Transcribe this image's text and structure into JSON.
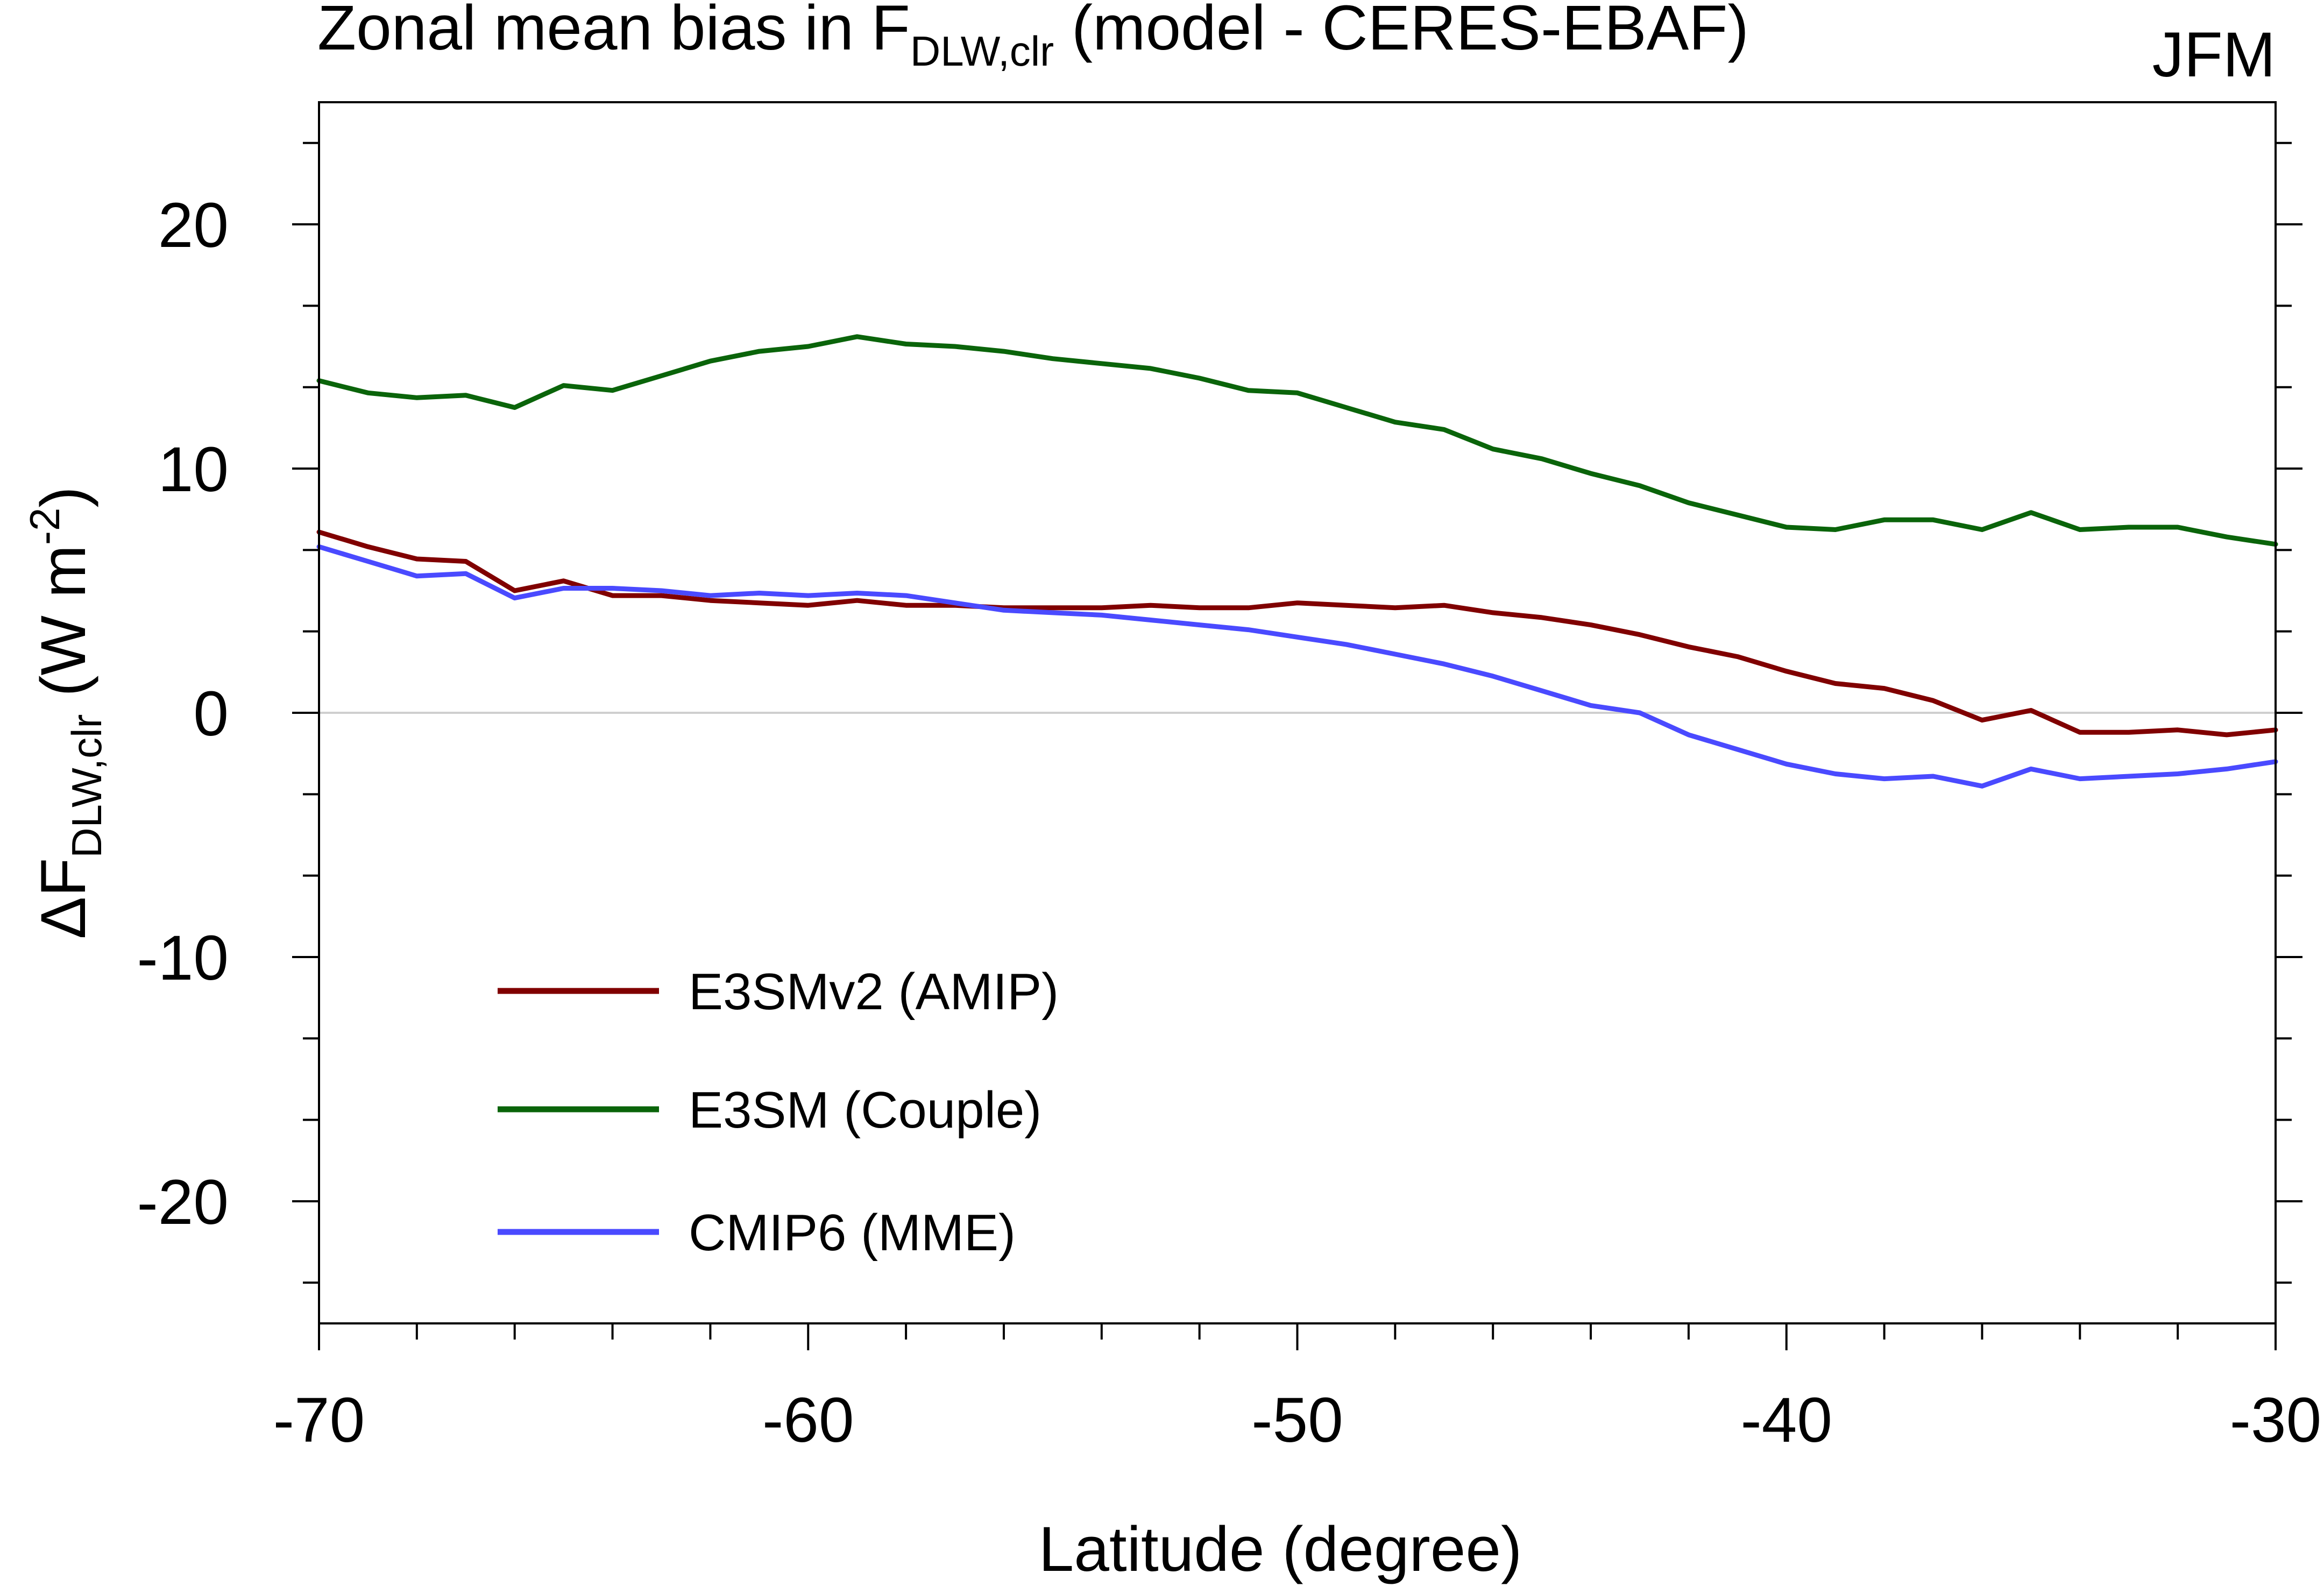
{
  "chart_data": {
    "type": "line",
    "title": {
      "prefix": "Zonal mean bias in F",
      "subscript": "DLW,clr",
      "suffix": " (model - CERES-EBAF)"
    },
    "season": "JFM",
    "xlabel": "Latitude (degree)",
    "ylabel": {
      "prefix": "ΔF",
      "subscript": "DLW,clr",
      "unit_open": " (W m",
      "superscript": "-2",
      "unit_close": ")"
    },
    "xlim": [
      -70,
      -30
    ],
    "ylim": [
      -25,
      25
    ],
    "xticks": [
      -70,
      -60,
      -50,
      -40,
      -30
    ],
    "yticks": [
      -20,
      -10,
      0,
      10,
      20
    ],
    "xtick_labels": [
      "-70",
      "-60",
      "-50",
      "-40",
      "-30"
    ],
    "ytick_labels": [
      "-20",
      "-10",
      "0",
      "10",
      "20"
    ],
    "x_minor_step": 2,
    "y_minor_step": 3.333,
    "zero_line": true,
    "legend_position": "lower-left",
    "x": [
      -70,
      -69,
      -68,
      -67,
      -66,
      -65,
      -64,
      -63,
      -62,
      -61,
      -60,
      -59,
      -58,
      -57,
      -56,
      -55,
      -54,
      -53,
      -52,
      -51,
      -50,
      -49,
      -48,
      -47,
      -46,
      -45,
      -44,
      -43,
      -42,
      -41,
      -40,
      -39,
      -38,
      -37,
      -36,
      -35,
      -34,
      -33,
      -32,
      -31,
      -30
    ],
    "series": [
      {
        "name": "E3SMv2 (AMIP)",
        "color": "#800000",
        "values": [
          7.4,
          6.8,
          6.3,
          6.2,
          5.0,
          5.4,
          4.8,
          4.8,
          4.6,
          4.5,
          4.4,
          4.6,
          4.4,
          4.4,
          4.3,
          4.3,
          4.3,
          4.4,
          4.3,
          4.3,
          4.5,
          4.4,
          4.3,
          4.4,
          4.1,
          3.9,
          3.6,
          3.2,
          2.7,
          2.3,
          1.7,
          1.2,
          1.0,
          0.5,
          -0.3,
          0.1,
          -0.8,
          -0.8,
          -0.7,
          -0.9,
          -0.7
        ]
      },
      {
        "name": "E3SM (Couple)",
        "color": "#0a640a",
        "values": [
          13.6,
          13.1,
          12.9,
          13.0,
          12.5,
          13.4,
          13.2,
          13.8,
          14.4,
          14.8,
          15.0,
          15.4,
          15.1,
          15.0,
          14.8,
          14.5,
          14.3,
          14.1,
          13.7,
          13.2,
          13.1,
          12.5,
          11.9,
          11.6,
          10.8,
          10.4,
          9.8,
          9.3,
          8.6,
          8.1,
          7.6,
          7.5,
          7.9,
          7.9,
          7.5,
          8.2,
          7.5,
          7.6,
          7.6,
          7.2,
          6.9
        ]
      },
      {
        "name": "CMIP6 (MME)",
        "color": "#4a4aff",
        "values": [
          6.8,
          6.2,
          5.6,
          5.7,
          4.7,
          5.1,
          5.1,
          5.0,
          4.8,
          4.9,
          4.8,
          4.9,
          4.8,
          4.5,
          4.2,
          4.1,
          4.0,
          3.8,
          3.6,
          3.4,
          3.1,
          2.8,
          2.4,
          2.0,
          1.5,
          0.9,
          0.3,
          0.0,
          -0.9,
          -1.5,
          -2.1,
          -2.5,
          -2.7,
          -2.6,
          -3.0,
          -2.3,
          -2.7,
          -2.6,
          -2.5,
          -2.3,
          -2.0
        ]
      }
    ]
  }
}
